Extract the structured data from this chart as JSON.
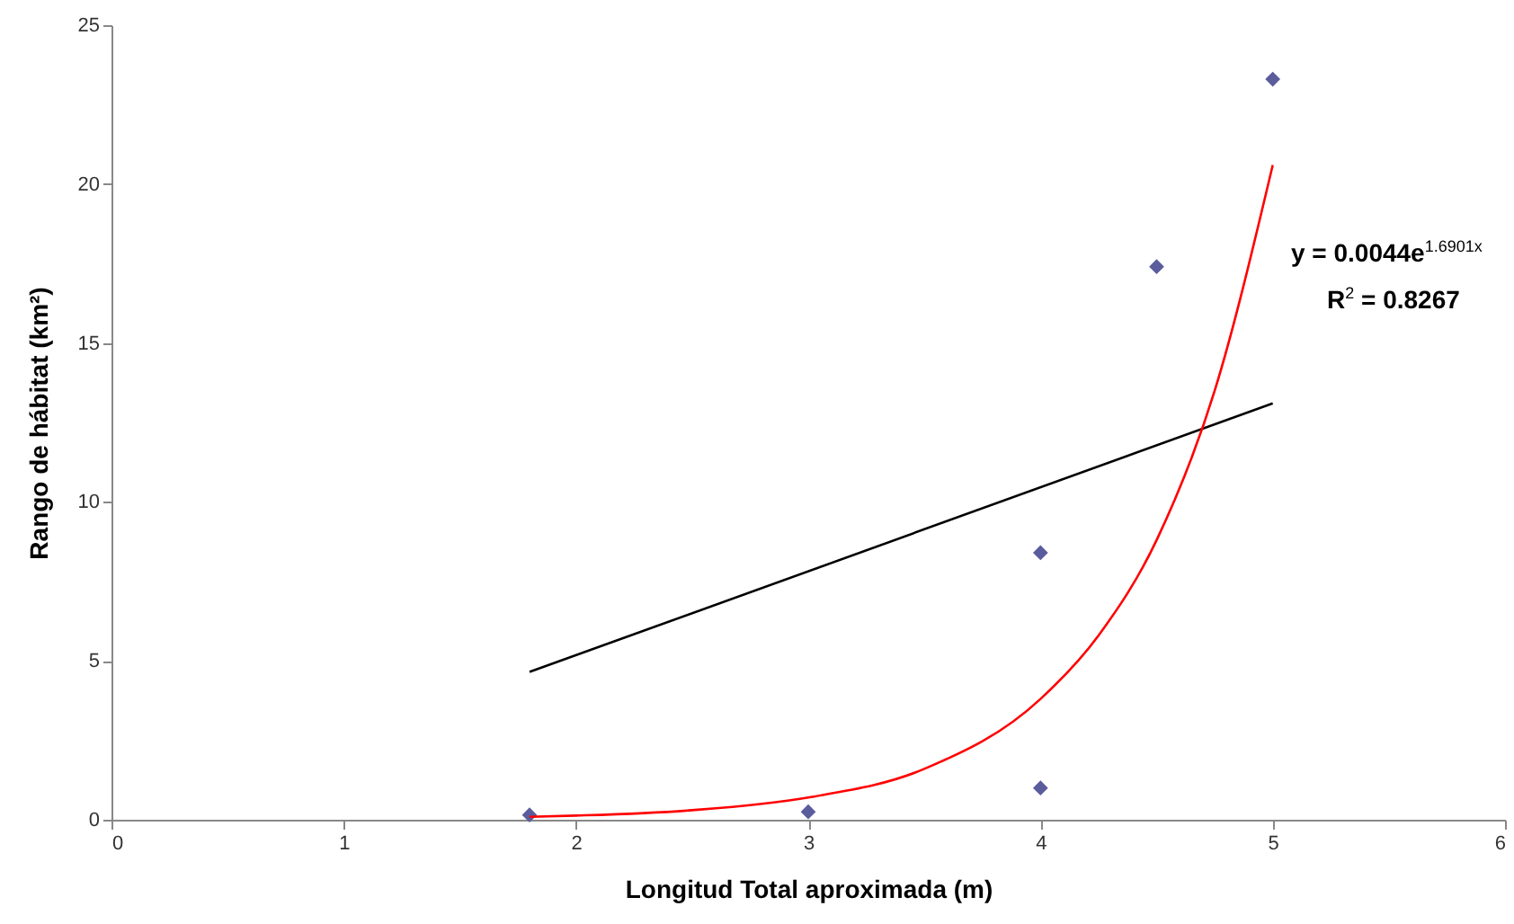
{
  "chart_data": {
    "type": "scatter",
    "xlabel": "Longitud Total aproximada (m)",
    "ylabel": "Rango de hábitat (km²)",
    "xlim": [
      0,
      6
    ],
    "xticks": [
      0,
      1,
      2,
      3,
      4,
      5,
      6
    ],
    "ylim": [
      0,
      25
    ],
    "yticks": [
      0,
      5,
      10,
      15,
      20,
      25
    ],
    "grid": false,
    "annotations": [
      "y = 0.0044e$^{1.6901x}$",
      "R$^{2}$ = 0.8267"
    ],
    "series": [
      {
        "marker": "diamond",
        "color": "#5a5c9c",
        "x": [
          1.8,
          3,
          4,
          4,
          4.5,
          5
        ],
        "values": [
          0.15,
          0.25,
          1.0,
          8.4,
          17.4,
          23.3
        ]
      },
      {
        "type": "line",
        "color": "#000000",
        "x": [
          1.8,
          5
        ],
        "values": [
          4.65,
          13.1
        ]
      },
      {
        "type": "line",
        "color": "#ff0000",
        "x": [
          1.8,
          2,
          2.5,
          3,
          3.5,
          4,
          4.25,
          4.5,
          4.75,
          5
        ],
        "values": [
          0.09,
          0.13,
          0.3,
          0.7,
          1.6,
          3.8,
          5.8,
          8.8,
          13.5,
          20.6
        ]
      }
    ]
  }
}
